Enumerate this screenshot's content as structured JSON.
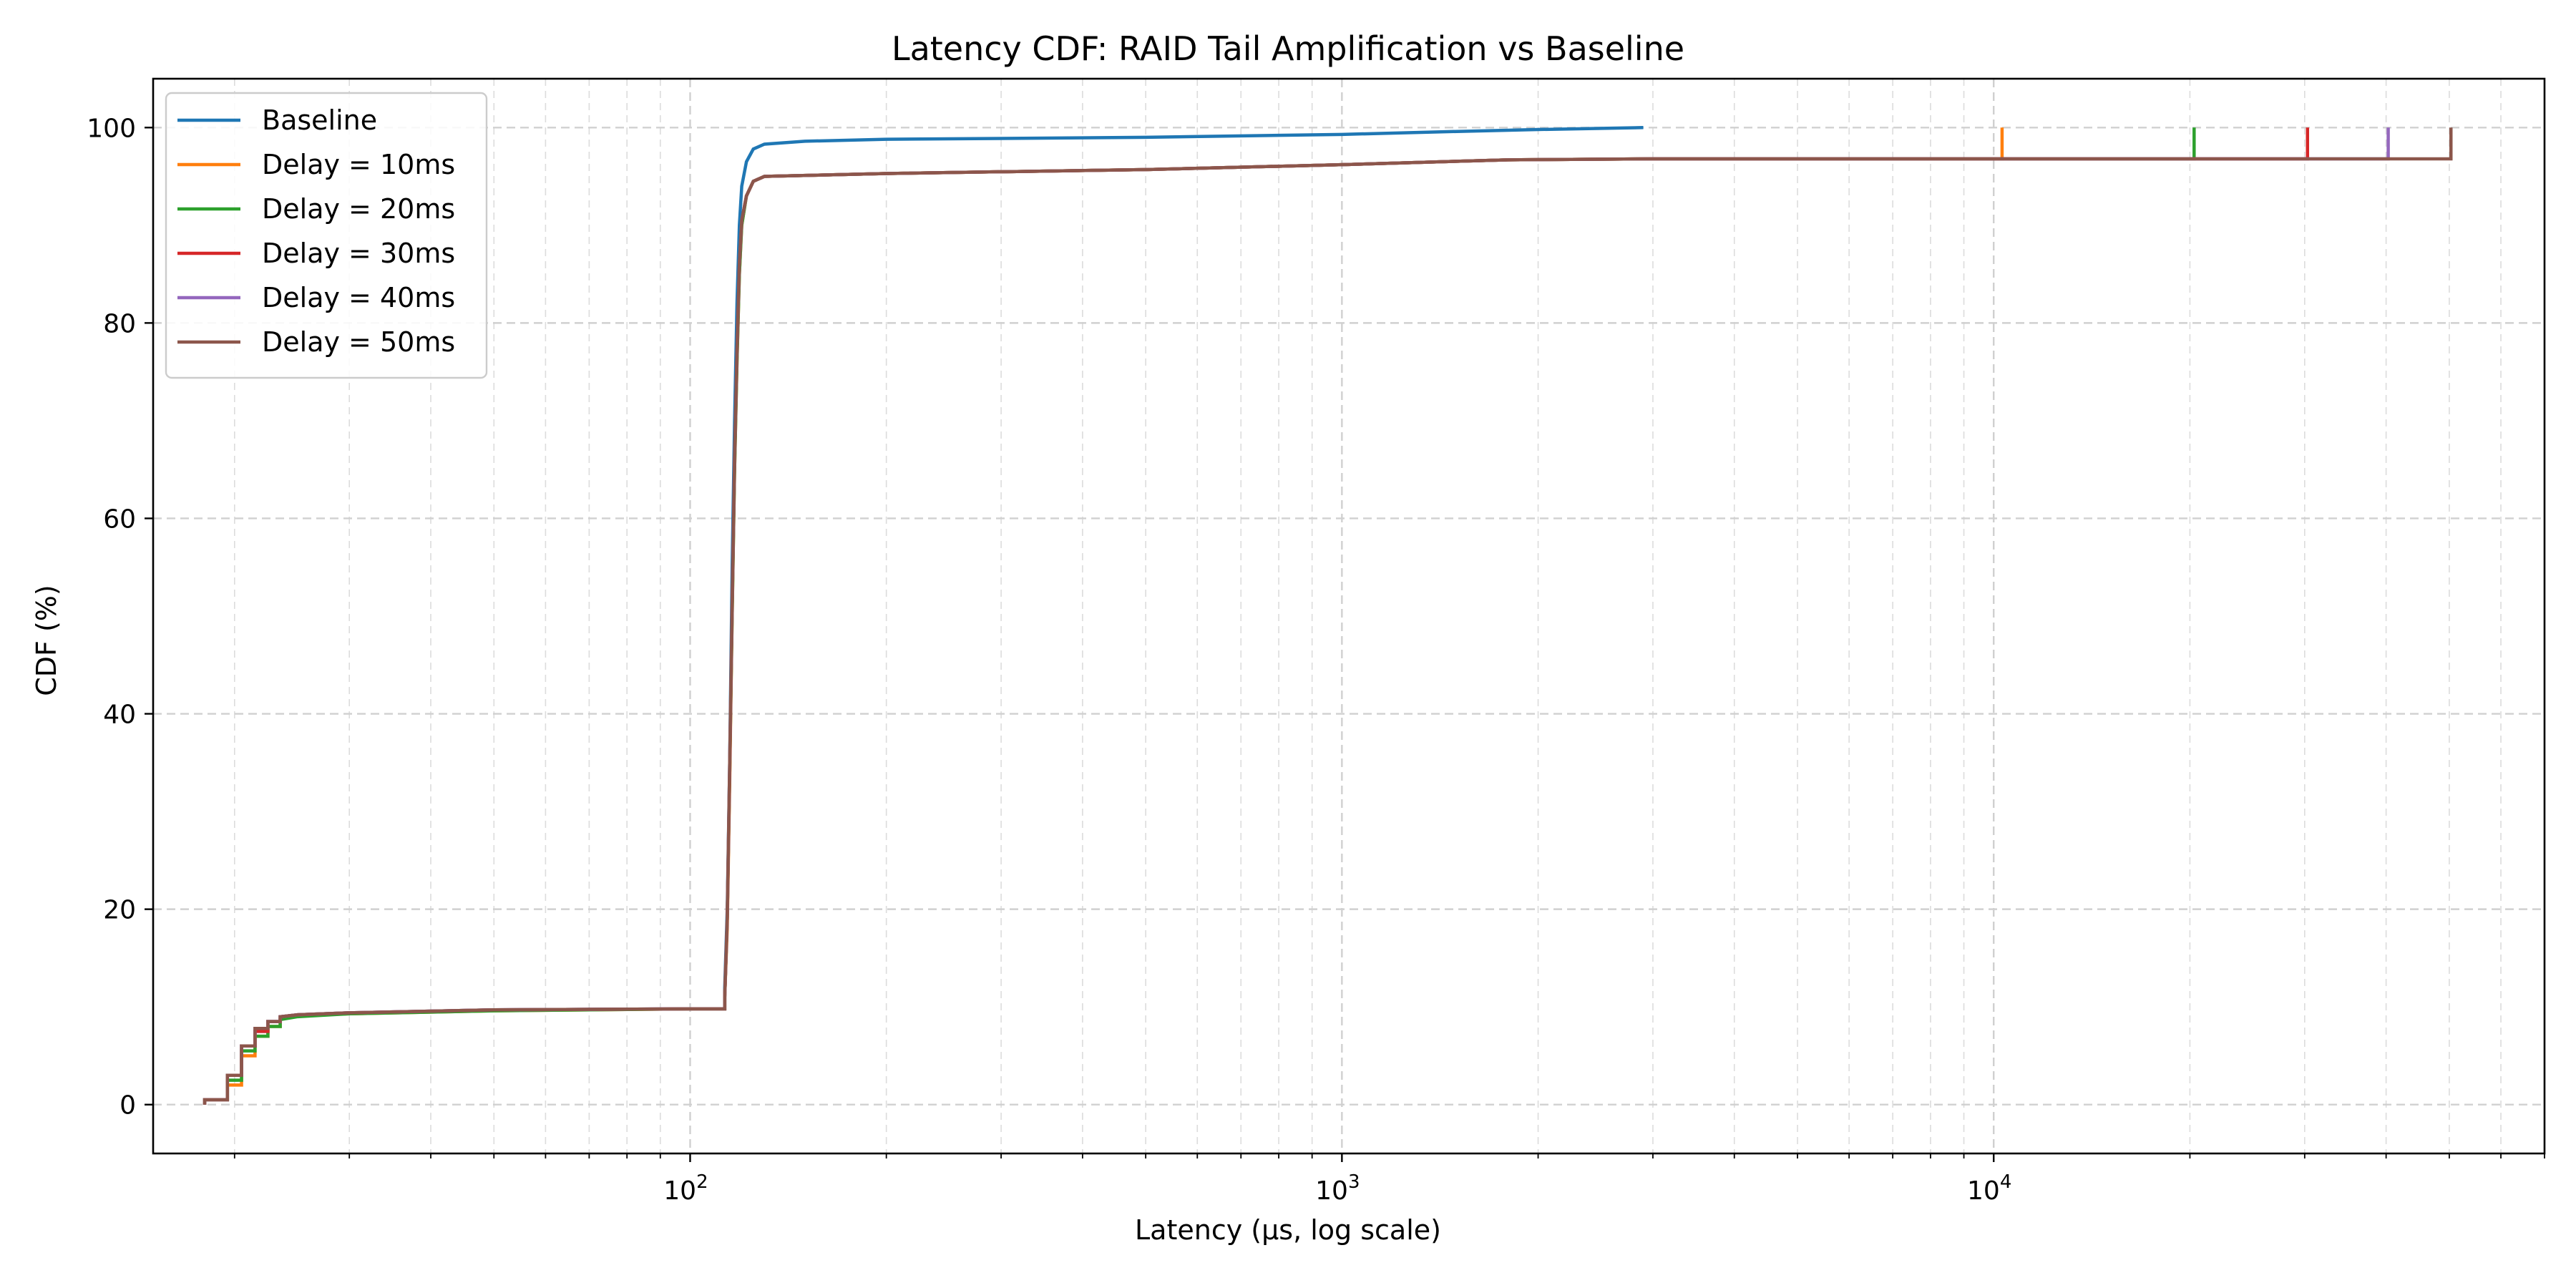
{
  "chart_data": {
    "type": "line",
    "title": "Latency CDF: RAID Tail Amplification vs Baseline",
    "xlabel": "Latency (µs, log scale)",
    "ylabel": "CDF (%)",
    "xscale": "log",
    "xlim": [
      15,
      70000
    ],
    "ylim": [
      -5,
      105
    ],
    "grid": "on (major and minor, dashed)",
    "legend_position": "top-left",
    "x_ticks": [
      {
        "value": 100,
        "base": "10",
        "exp": "2"
      },
      {
        "value": 1000,
        "base": "10",
        "exp": "3"
      },
      {
        "value": 10000,
        "base": "10",
        "exp": "4"
      }
    ],
    "y_ticks": [
      {
        "value": 0,
        "label": "0"
      },
      {
        "value": 20,
        "label": "20"
      },
      {
        "value": 40,
        "label": "40"
      },
      {
        "value": 60,
        "label": "60"
      },
      {
        "value": 80,
        "label": "80"
      },
      {
        "value": 100,
        "label": "100"
      }
    ],
    "series": [
      {
        "name": "Baseline",
        "color": "#1f77b4",
        "points": [
          [
            18,
            0
          ],
          [
            18,
            0.5
          ],
          [
            19.5,
            0.5
          ],
          [
            19.5,
            3
          ],
          [
            20.5,
            3
          ],
          [
            20.5,
            6
          ],
          [
            21.5,
            6
          ],
          [
            21.5,
            7.5
          ],
          [
            22.5,
            7.5
          ],
          [
            22.5,
            8.5
          ],
          [
            23.5,
            8.5
          ],
          [
            23.5,
            9
          ],
          [
            25,
            9.2
          ],
          [
            30,
            9.4
          ],
          [
            50,
            9.7
          ],
          [
            100,
            9.8
          ],
          [
            113,
            9.8
          ],
          [
            113,
            12
          ],
          [
            114,
            20
          ],
          [
            115,
            35
          ],
          [
            116,
            55
          ],
          [
            117,
            70
          ],
          [
            118,
            82
          ],
          [
            119,
            90
          ],
          [
            120,
            94
          ],
          [
            122,
            96.5
          ],
          [
            125,
            97.8
          ],
          [
            130,
            98.3
          ],
          [
            150,
            98.6
          ],
          [
            200,
            98.8
          ],
          [
            500,
            99.0
          ],
          [
            1000,
            99.3
          ],
          [
            1500,
            99.6
          ],
          [
            2000,
            99.8
          ],
          [
            2900,
            100
          ]
        ]
      },
      {
        "name": "Delay = 10ms",
        "color": "#ff7f0e",
        "points": [
          [
            18,
            0
          ],
          [
            18,
            0.5
          ],
          [
            19.5,
            0.5
          ],
          [
            19.5,
            2
          ],
          [
            20.5,
            2
          ],
          [
            20.5,
            5
          ],
          [
            21.5,
            5
          ],
          [
            21.5,
            7
          ],
          [
            22.5,
            7
          ],
          [
            22.5,
            8
          ],
          [
            23.5,
            8
          ],
          [
            23.5,
            8.8
          ],
          [
            25,
            9.1
          ],
          [
            30,
            9.3
          ],
          [
            50,
            9.6
          ],
          [
            100,
            9.8
          ],
          [
            113,
            9.8
          ],
          [
            113,
            11
          ],
          [
            114,
            18
          ],
          [
            115,
            33
          ],
          [
            116,
            50
          ],
          [
            117,
            65
          ],
          [
            118,
            76
          ],
          [
            119,
            85
          ],
          [
            120,
            90
          ],
          [
            122,
            93
          ],
          [
            125,
            94.5
          ],
          [
            130,
            95
          ],
          [
            200,
            95.3
          ],
          [
            500,
            95.7
          ],
          [
            1000,
            96.2
          ],
          [
            1800,
            96.7
          ],
          [
            3000,
            96.8
          ],
          [
            10300,
            96.8
          ],
          [
            10300,
            100
          ]
        ]
      },
      {
        "name": "Delay = 20ms",
        "color": "#2ca02c",
        "points": [
          [
            18,
            0
          ],
          [
            18,
            0.5
          ],
          [
            19.5,
            0.5
          ],
          [
            19.5,
            2.5
          ],
          [
            20.5,
            2.5
          ],
          [
            20.5,
            5.5
          ],
          [
            21.5,
            5.5
          ],
          [
            21.5,
            7
          ],
          [
            22.5,
            7
          ],
          [
            22.5,
            8
          ],
          [
            23.5,
            8
          ],
          [
            23.5,
            8.7
          ],
          [
            25,
            9.0
          ],
          [
            30,
            9.3
          ],
          [
            50,
            9.6
          ],
          [
            100,
            9.8
          ],
          [
            113,
            9.8
          ],
          [
            113,
            11
          ],
          [
            114,
            19
          ],
          [
            115,
            34
          ],
          [
            116,
            50
          ],
          [
            117,
            65
          ],
          [
            118,
            76
          ],
          [
            119,
            85
          ],
          [
            120,
            90
          ],
          [
            122,
            93
          ],
          [
            125,
            94.5
          ],
          [
            130,
            95
          ],
          [
            200,
            95.3
          ],
          [
            500,
            95.7
          ],
          [
            1000,
            96.2
          ],
          [
            1800,
            96.7
          ],
          [
            3000,
            96.8
          ],
          [
            20300,
            96.8
          ],
          [
            20300,
            100
          ]
        ]
      },
      {
        "name": "Delay = 30ms",
        "color": "#d62728",
        "points": [
          [
            18,
            0
          ],
          [
            18,
            0.5
          ],
          [
            19.5,
            0.5
          ],
          [
            19.5,
            3
          ],
          [
            20.5,
            3
          ],
          [
            20.5,
            6
          ],
          [
            21.5,
            6
          ],
          [
            21.5,
            7.5
          ],
          [
            22.5,
            7.5
          ],
          [
            22.5,
            8.5
          ],
          [
            23.5,
            8.5
          ],
          [
            23.5,
            9
          ],
          [
            25,
            9.2
          ],
          [
            30,
            9.4
          ],
          [
            50,
            9.7
          ],
          [
            100,
            9.8
          ],
          [
            113,
            9.8
          ],
          [
            113,
            11
          ],
          [
            114,
            19
          ],
          [
            115,
            34
          ],
          [
            116,
            51
          ],
          [
            117,
            66
          ],
          [
            118,
            77
          ],
          [
            119,
            86
          ],
          [
            120,
            90.5
          ],
          [
            122,
            93
          ],
          [
            125,
            94.5
          ],
          [
            130,
            95
          ],
          [
            200,
            95.3
          ],
          [
            500,
            95.7
          ],
          [
            1000,
            96.2
          ],
          [
            1800,
            96.7
          ],
          [
            3000,
            96.8
          ],
          [
            30300,
            96.8
          ],
          [
            30300,
            100
          ]
        ]
      },
      {
        "name": "Delay = 40ms",
        "color": "#9467bd",
        "points": [
          [
            18,
            0
          ],
          [
            18,
            0.5
          ],
          [
            19.5,
            0.5
          ],
          [
            19.5,
            3
          ],
          [
            20.5,
            3
          ],
          [
            20.5,
            6
          ],
          [
            21.5,
            6
          ],
          [
            21.5,
            7.8
          ],
          [
            22.5,
            7.8
          ],
          [
            22.5,
            8.5
          ],
          [
            23.5,
            8.5
          ],
          [
            23.5,
            9
          ],
          [
            25,
            9.2
          ],
          [
            30,
            9.4
          ],
          [
            50,
            9.7
          ],
          [
            100,
            9.8
          ],
          [
            113,
            9.8
          ],
          [
            113,
            11
          ],
          [
            114,
            19
          ],
          [
            115,
            35
          ],
          [
            116,
            51
          ],
          [
            117,
            66
          ],
          [
            118,
            77
          ],
          [
            119,
            86
          ],
          [
            120,
            90.5
          ],
          [
            122,
            93
          ],
          [
            125,
            94.5
          ],
          [
            130,
            95
          ],
          [
            200,
            95.3
          ],
          [
            500,
            95.7
          ],
          [
            1000,
            96.2
          ],
          [
            1800,
            96.7
          ],
          [
            3000,
            96.8
          ],
          [
            40300,
            96.8
          ],
          [
            40300,
            100
          ]
        ]
      },
      {
        "name": "Delay = 50ms",
        "color": "#8c564b",
        "points": [
          [
            18,
            0
          ],
          [
            18,
            0.5
          ],
          [
            19.5,
            0.5
          ],
          [
            19.5,
            3
          ],
          [
            20.5,
            3
          ],
          [
            20.5,
            6
          ],
          [
            21.5,
            6
          ],
          [
            21.5,
            7.8
          ],
          [
            22.5,
            7.8
          ],
          [
            22.5,
            8.5
          ],
          [
            23.5,
            8.5
          ],
          [
            23.5,
            9
          ],
          [
            25,
            9.2
          ],
          [
            30,
            9.4
          ],
          [
            50,
            9.7
          ],
          [
            100,
            9.8
          ],
          [
            113,
            9.8
          ],
          [
            113,
            11
          ],
          [
            114,
            19
          ],
          [
            115,
            35
          ],
          [
            116,
            51
          ],
          [
            117,
            66
          ],
          [
            118,
            77
          ],
          [
            119,
            86
          ],
          [
            120,
            90.5
          ],
          [
            122,
            93
          ],
          [
            125,
            94.5
          ],
          [
            130,
            95
          ],
          [
            200,
            95.3
          ],
          [
            500,
            95.7
          ],
          [
            1000,
            96.2
          ],
          [
            1800,
            96.7
          ],
          [
            3000,
            96.8
          ],
          [
            50300,
            96.8
          ],
          [
            50300,
            100
          ]
        ]
      }
    ]
  }
}
